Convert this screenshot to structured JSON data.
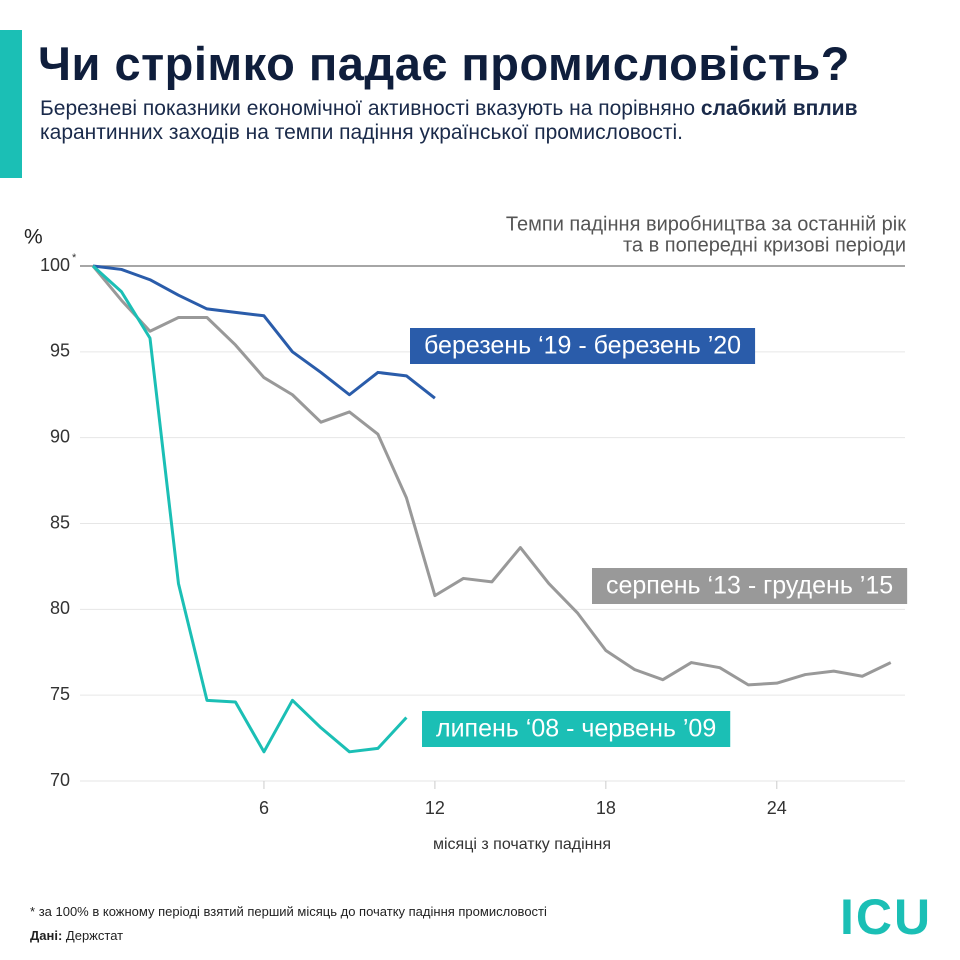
{
  "header": {
    "title": "Чи стрімко падає промисловість?",
    "subtitle_start": "Березневі показники економічної активності вказують на порівняно",
    "subtitle_bold": "слабкий вплив",
    "subtitle_end": "карантинних заходів на темпи падіння української промисловості."
  },
  "chart_data": {
    "type": "line",
    "title": "Темпи падіння виробництва за останній рік",
    "subtitle": "та в попередні кризові періоди",
    "ylabel": "%",
    "xlabel": "місяці з початку падіння",
    "ytick_mark": "*",
    "xlim": [
      0,
      28.5
    ],
    "ylim": [
      70,
      100
    ],
    "xticks": [
      6,
      12,
      18,
      24
    ],
    "yticks": [
      70,
      75,
      80,
      85,
      90,
      95,
      100
    ],
    "grid": true,
    "series": [
      {
        "name": "березень ‘19 - березень ’20",
        "color": "#2a5caa",
        "x": [
          0,
          1,
          2,
          3,
          4,
          5,
          6,
          7,
          8,
          9,
          10,
          11,
          12
        ],
        "values": [
          100,
          99.8,
          99.2,
          98.3,
          97.5,
          97.3,
          97.1,
          95.0,
          93.8,
          92.5,
          93.8,
          93.6,
          92.3
        ]
      },
      {
        "name": "серпень ‘13 - грудень ’15",
        "color": "#999999",
        "x": [
          0,
          1,
          2,
          3,
          4,
          5,
          6,
          7,
          8,
          9,
          10,
          11,
          12,
          13,
          14,
          15,
          16,
          17,
          18,
          19,
          20,
          21,
          22,
          23,
          24,
          25,
          26,
          27,
          28
        ],
        "values": [
          100,
          98.0,
          96.2,
          97.0,
          97.0,
          95.4,
          93.5,
          92.5,
          90.9,
          91.5,
          90.2,
          86.5,
          80.8,
          81.8,
          81.6,
          83.6,
          81.5,
          79.8,
          77.6,
          76.5,
          75.9,
          76.9,
          76.6,
          75.6,
          75.7,
          76.2,
          76.4,
          76.1,
          76.9
        ]
      },
      {
        "name": "липень ‘08 - червень ’09",
        "color": "#1bbfb5",
        "x": [
          0,
          1,
          2,
          3,
          4,
          5,
          6,
          7,
          8,
          9,
          10,
          11
        ],
        "values": [
          100,
          98.5,
          95.8,
          81.5,
          74.7,
          74.6,
          71.7,
          74.7,
          73.1,
          71.7,
          71.9,
          73.7
        ]
      }
    ]
  },
  "footer": {
    "note_mark": "*",
    "note": "за 100% в кожному періоді взятий перший місяць до початку падіння промисловості",
    "source_label": "Дані:",
    "source": "Держстат",
    "logo": "ICU"
  }
}
